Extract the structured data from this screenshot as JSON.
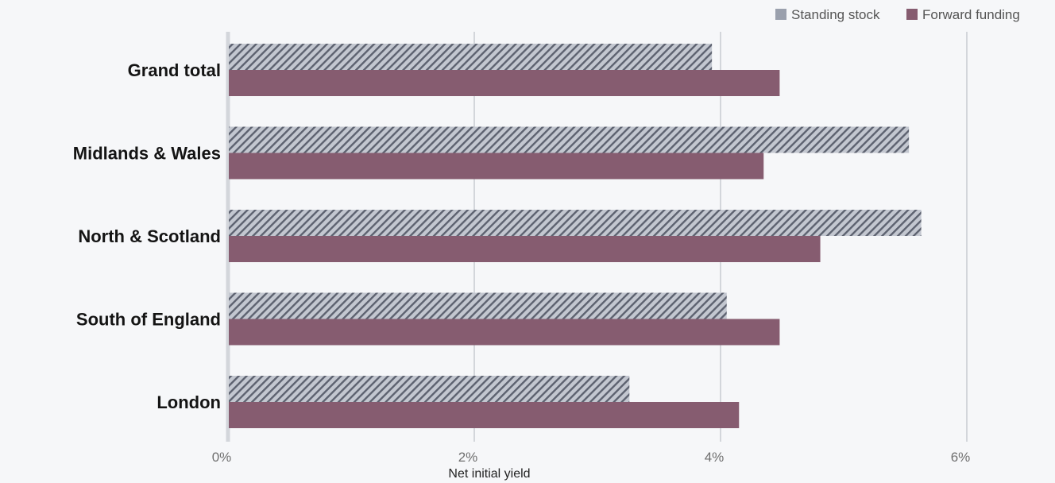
{
  "chart_data": {
    "type": "bar",
    "orientation": "horizontal",
    "categories": [
      "Grand total",
      "Midlands & Wales",
      "North & Scotland",
      "South of England",
      "London"
    ],
    "series": [
      {
        "name": "Standing stock",
        "values": [
          3.93,
          5.53,
          5.63,
          4.05,
          3.26
        ],
        "color": "#9aa0ad",
        "pattern": "diagonal-hatch"
      },
      {
        "name": "Forward funding",
        "values": [
          4.48,
          4.35,
          4.81,
          4.48,
          4.15
        ],
        "color": "#865c70"
      }
    ],
    "xlabel": "Net initial yield",
    "ylabel": "",
    "xlim": [
      0,
      6.5
    ],
    "xticks": [
      0,
      2,
      4,
      6
    ],
    "tick_suffix": "%",
    "grid": true,
    "legend_position": "top-right"
  }
}
